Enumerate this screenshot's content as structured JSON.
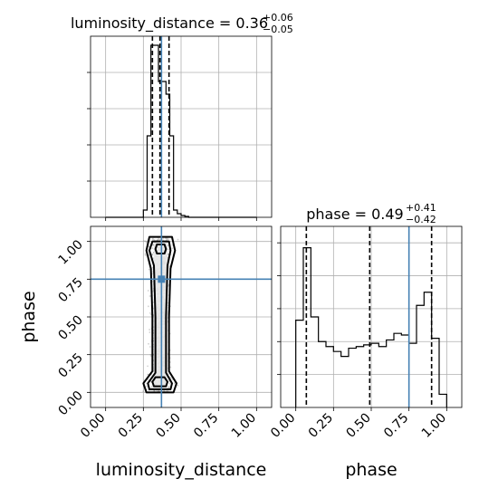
{
  "colors": {
    "truth": "#4682b4",
    "hist": "#000000",
    "grid": "#b0b0b0",
    "scatter": "#7f7f7f"
  },
  "chart_data": [
    {
      "type": "bar",
      "panel": "marginal-luminosity_distance",
      "title": {
        "param": "luminosity_distance",
        "median": "0.36",
        "plus": "+0.06",
        "minus": "−0.05"
      },
      "bin_edges": [
        0.0,
        0.025,
        0.05,
        0.075,
        0.1,
        0.125,
        0.15,
        0.175,
        0.2,
        0.225,
        0.25,
        0.275,
        0.3,
        0.325,
        0.35,
        0.375,
        0.4,
        0.425,
        0.45,
        0.475,
        0.5,
        0.525,
        0.55,
        0.575,
        0.6,
        0.625,
        0.65,
        0.675,
        0.7,
        0.725,
        0.75,
        0.775,
        0.8,
        0.825,
        0.85,
        0.875,
        0.9,
        0.925,
        0.95,
        0.975,
        1.0
      ],
      "values": [
        0,
        0,
        0,
        0,
        0,
        0,
        0,
        0,
        0,
        0,
        0.04,
        0.45,
        0.95,
        0.95,
        0.75,
        0.75,
        0.68,
        0.45,
        0.04,
        0.02,
        0.01,
        0.005,
        0,
        0,
        0,
        0,
        0,
        0,
        0,
        0,
        0,
        0,
        0,
        0,
        0,
        0,
        0,
        0,
        0,
        0
      ],
      "ylim": [
        0,
        1.0
      ],
      "quantiles": [
        0.31,
        0.36,
        0.42
      ],
      "truth": 0.37,
      "grid": true
    },
    {
      "type": "bar",
      "panel": "marginal-phase",
      "title": {
        "param": "phase",
        "median": "0.49",
        "plus": "+0.41",
        "minus": "−0.42"
      },
      "bin_edges": [
        0.0,
        0.05,
        0.1,
        0.15,
        0.2,
        0.25,
        0.3,
        0.35,
        0.4,
        0.45,
        0.5,
        0.55,
        0.6,
        0.65,
        0.7,
        0.75,
        0.8,
        0.85,
        0.9,
        0.95,
        1.0
      ],
      "values": [
        0.53,
        0.97,
        0.55,
        0.4,
        0.37,
        0.34,
        0.31,
        0.36,
        0.37,
        0.38,
        0.39,
        0.37,
        0.41,
        0.45,
        0.44,
        0.39,
        0.62,
        0.7,
        0.42,
        0.08
      ],
      "ylim": [
        0,
        1.1
      ],
      "quantiles": [
        0.07,
        0.49,
        0.9
      ],
      "truth": 0.75,
      "grid": true
    },
    {
      "type": "scatter",
      "panel": "2d-phase-vs-luminosity_distance",
      "xlabel": "luminosity_distance",
      "ylabel": "phase",
      "x_ticks": [
        "0.00",
        "0.25",
        "0.50",
        "0.75",
        "1.00"
      ],
      "y_ticks": [
        "0.00",
        "0.25",
        "0.50",
        "0.75",
        "1.00"
      ],
      "xlim": [
        -0.1,
        1.1
      ],
      "ylim": [
        -0.1,
        1.1
      ],
      "truth": {
        "x": 0.37,
        "y": 0.75
      },
      "contours": [
        {
          "level": "outer",
          "points": [
            [
              0.27,
              0.0
            ],
            [
              0.45,
              0.0
            ],
            [
              0.47,
              0.06
            ],
            [
              0.42,
              0.14
            ],
            [
              0.42,
              0.5
            ],
            [
              0.43,
              0.82
            ],
            [
              0.46,
              0.94
            ],
            [
              0.44,
              1.03
            ],
            [
              0.29,
              1.03
            ],
            [
              0.27,
              0.94
            ],
            [
              0.3,
              0.82
            ],
            [
              0.31,
              0.5
            ],
            [
              0.31,
              0.14
            ],
            [
              0.25,
              0.06
            ]
          ]
        },
        {
          "level": "middle",
          "points": [
            [
              0.29,
              0.02
            ],
            [
              0.43,
              0.02
            ],
            [
              0.44,
              0.06
            ],
            [
              0.4,
              0.13
            ],
            [
              0.4,
              0.5
            ],
            [
              0.41,
              0.84
            ],
            [
              0.43,
              0.94
            ],
            [
              0.42,
              1.0
            ],
            [
              0.31,
              1.0
            ],
            [
              0.29,
              0.94
            ],
            [
              0.32,
              0.84
            ],
            [
              0.33,
              0.5
            ],
            [
              0.33,
              0.13
            ],
            [
              0.28,
              0.06
            ]
          ]
        },
        {
          "level": "inner-low",
          "points": [
            [
              0.32,
              0.04
            ],
            [
              0.4,
              0.04
            ],
            [
              0.41,
              0.07
            ],
            [
              0.39,
              0.1
            ],
            [
              0.33,
              0.1
            ],
            [
              0.31,
              0.07
            ]
          ]
        },
        {
          "level": "inner-high",
          "points": [
            [
              0.34,
              0.92
            ],
            [
              0.39,
              0.92
            ],
            [
              0.4,
              0.95
            ],
            [
              0.39,
              0.98
            ],
            [
              0.34,
              0.98
            ],
            [
              0.33,
              0.95
            ]
          ]
        }
      ],
      "grid": true
    },
    {
      "type": "line",
      "panel": "marginal-phase-axis",
      "xlabel": "phase",
      "x_ticks": [
        "0.00",
        "0.25",
        "0.50",
        "0.75",
        "1.00"
      ]
    }
  ]
}
